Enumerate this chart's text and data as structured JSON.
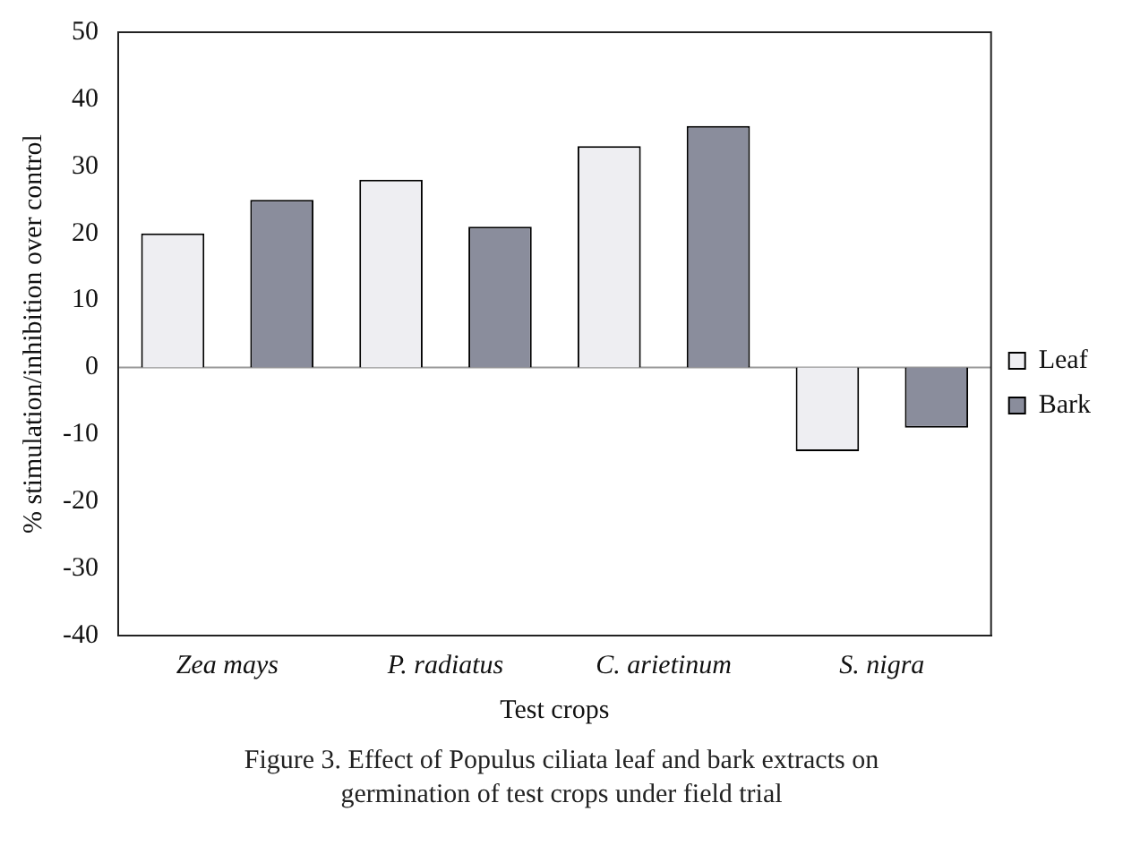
{
  "chart_data": {
    "type": "bar",
    "xlabel": "Test crops",
    "ylabel": "% stimulation/inhibition over control",
    "categories": [
      "Zea mays",
      "P. radiatus",
      "C. arietinum",
      "S. nigra"
    ],
    "series": [
      {
        "name": "Leaf",
        "color": "#eeeef2",
        "values": [
          20,
          28,
          33,
          -12.5
        ]
      },
      {
        "name": "Bark",
        "color": "#8a8d9c",
        "values": [
          25,
          21,
          36,
          -9
        ]
      }
    ],
    "ylim": [
      -40,
      50
    ],
    "yticks": [
      -40,
      -30,
      -20,
      -10,
      0,
      10,
      20,
      30,
      40,
      50
    ],
    "grid": false,
    "ref_lines": [
      {
        "axis": "y",
        "value": 0,
        "color": "#999999"
      }
    ],
    "legend": "right",
    "annotations": [
      "Figure 3. Effect of Populus ciliata leaf and bark extracts on germination of test crops under field trial"
    ]
  }
}
